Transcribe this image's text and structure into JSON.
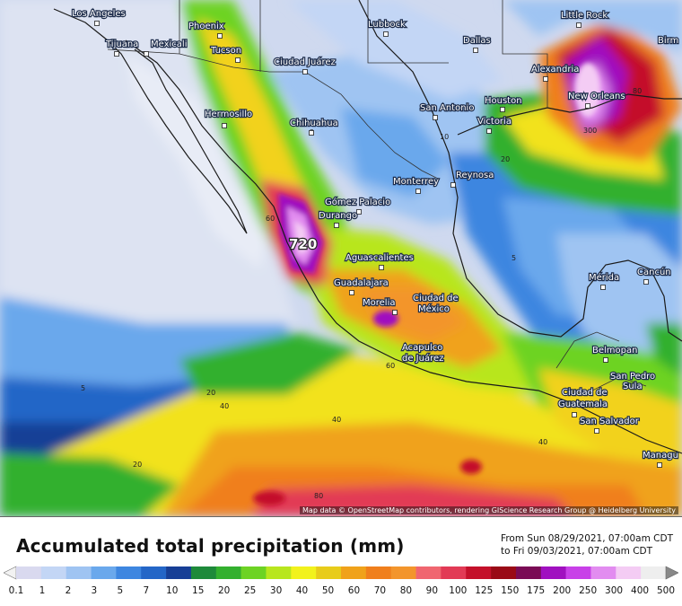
{
  "title": "Accumulated total precipitation (mm)",
  "period": {
    "from": "From Sun 08/29/2021, 07:00am CDT",
    "to": "to Fri 09/03/2021, 07:00am CDT"
  },
  "attribution": "Map data © OpenStreetMap contributors, rendering GIScience Research Group @ Heidelberg University",
  "legend": {
    "ticks": [
      "0.1",
      "1",
      "2",
      "3",
      "5",
      "7",
      "10",
      "15",
      "20",
      "25",
      "30",
      "40",
      "50",
      "60",
      "70",
      "80",
      "90",
      "100",
      "125",
      "150",
      "175",
      "200",
      "250",
      "300",
      "400",
      "500"
    ],
    "colors": [
      "#d9d9ef",
      "#c3d6f5",
      "#9fc4f2",
      "#6aa8ec",
      "#3e86e0",
      "#2466c7",
      "#173f96",
      "#1e8a3a",
      "#33b02e",
      "#6dd324",
      "#b8e61e",
      "#f2f21c",
      "#e8cc1a",
      "#f0a21a",
      "#f07f1c",
      "#f3952c",
      "#f06670",
      "#e23a55",
      "#c4102a",
      "#9a0a16",
      "#7a0b55",
      "#a010c0",
      "#c840e8",
      "#e28cf0",
      "#f4ccf4",
      "#eeeeee"
    ]
  },
  "cities": [
    {
      "name": "Los Angeles",
      "id": "los-angeles"
    },
    {
      "name": "Tijuana",
      "id": "tijuana"
    },
    {
      "name": "Mexicali",
      "id": "mexicali"
    },
    {
      "name": "Phoenix",
      "id": "phoenix"
    },
    {
      "name": "Tucson",
      "id": "tucson"
    },
    {
      "name": "Ciudad Juárez",
      "id": "ciudad-juarez"
    },
    {
      "name": "Lubbock",
      "id": "lubbock"
    },
    {
      "name": "Dallas",
      "id": "dallas"
    },
    {
      "name": "Little Rock",
      "id": "little-rock"
    },
    {
      "name": "Birm",
      "id": "birmingham"
    },
    {
      "name": "Alexandria",
      "id": "alexandria"
    },
    {
      "name": "New Orleans",
      "id": "new-orleans"
    },
    {
      "name": "Houston",
      "id": "houston"
    },
    {
      "name": "San Antonio",
      "id": "san-antonio"
    },
    {
      "name": "Victoria",
      "id": "victoria"
    },
    {
      "name": "Hermosillo",
      "id": "hermosillo"
    },
    {
      "name": "Chihuahua",
      "id": "chihuahua"
    },
    {
      "name": "Monterrey",
      "id": "monterrey"
    },
    {
      "name": "Reynosa",
      "id": "reynosa"
    },
    {
      "name": "Gómez Palacio",
      "id": "gomez-palacio"
    },
    {
      "name": "Durango",
      "id": "durango"
    },
    {
      "name": "Aguascalientes",
      "id": "aguascalientes"
    },
    {
      "name": "Guadalajara",
      "id": "guadalajara"
    },
    {
      "name": "Morelia",
      "id": "morelia"
    },
    {
      "name": "Ciudad de",
      "id": "cdmx-1"
    },
    {
      "name": "México",
      "id": "cdmx-2"
    },
    {
      "name": "Acapulco",
      "id": "acapulco-1"
    },
    {
      "name": "de Juárez",
      "id": "acapulco-2"
    },
    {
      "name": "Mérida",
      "id": "merida"
    },
    {
      "name": "Cancún",
      "id": "cancun"
    },
    {
      "name": "Belmopan",
      "id": "belmopan"
    },
    {
      "name": "San Pedro",
      "id": "san-pedro-1"
    },
    {
      "name": "Sula",
      "id": "san-pedro-2"
    },
    {
      "name": "Ciudad de",
      "id": "guatemala-1"
    },
    {
      "name": "Guatemala",
      "id": "guatemala-2"
    },
    {
      "name": "San Salvador",
      "id": "san-salvador"
    },
    {
      "name": "Managu",
      "id": "managua"
    }
  ],
  "contour_labels": [
    "720",
    "300",
    "60",
    "40",
    "20",
    "5",
    "80",
    "10",
    "2"
  ]
}
